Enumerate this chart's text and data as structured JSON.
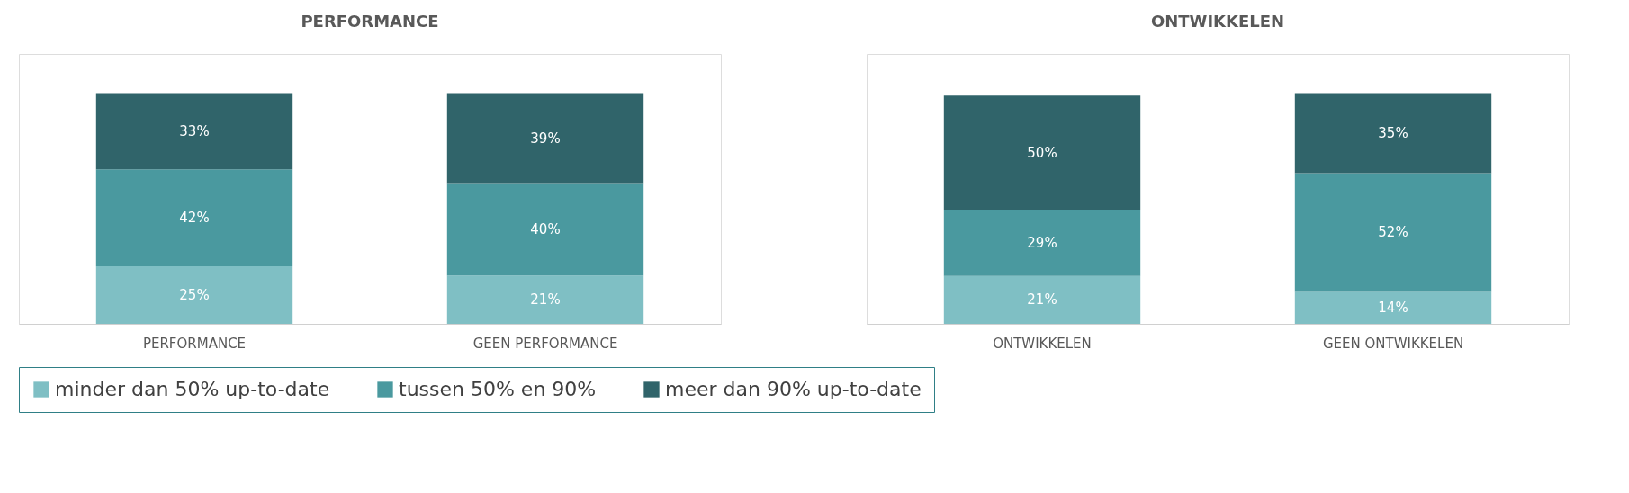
{
  "chart_data": [
    {
      "type": "bar",
      "title": "PERFORMANCE",
      "categories": [
        "PERFORMANCE",
        "GEEN PERFORMANCE"
      ],
      "stacked": true,
      "legend": "bottom",
      "series": [
        {
          "name": "minder dan 50% up-to-date",
          "color": "#7fbfc4",
          "values": [
            25,
            21
          ],
          "value_labels": [
            "25%",
            "21%"
          ]
        },
        {
          "name": "tussen 50% en 90%",
          "color": "#4a999f",
          "values": [
            42,
            40
          ],
          "value_labels": [
            "42%",
            "40%"
          ]
        },
        {
          "name": "meer dan 90% up-to-date",
          "color": "#30646a",
          "values": [
            33,
            39
          ],
          "value_labels": [
            "33%",
            "39%"
          ]
        }
      ]
    },
    {
      "type": "bar",
      "title": "ONTWIKKELEN",
      "categories": [
        "ONTWIKKELEN",
        "GEEN ONTWIKKELEN"
      ],
      "stacked": true,
      "legend": "bottom",
      "series": [
        {
          "name": "minder dan 50% up-to-date",
          "color": "#7fbfc4",
          "values": [
            21,
            14
          ],
          "value_labels": [
            "21%",
            "14%"
          ]
        },
        {
          "name": "tussen 50% en 90%",
          "color": "#4a999f",
          "values": [
            29,
            52
          ],
          "value_labels": [
            "29%",
            "52%"
          ]
        },
        {
          "name": "meer dan 90% up-to-date",
          "color": "#30646a",
          "values": [
            50,
            35
          ],
          "value_labels": [
            "50%",
            "35%"
          ]
        }
      ]
    }
  ]
}
